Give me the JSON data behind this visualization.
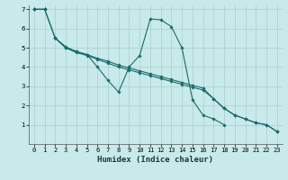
{
  "background_color": "#c8eaea",
  "grid_color": "#aacccc",
  "line_color": "#1a6b6b",
  "series": [
    {
      "x": [
        0,
        1
      ],
      "y": [
        7.0,
        7.0
      ]
    },
    {
      "x": [
        2,
        3,
        4,
        5,
        6,
        7,
        8,
        9,
        10,
        11,
        12,
        13,
        14,
        15,
        16,
        17,
        18
      ],
      "y": [
        5.5,
        5.0,
        4.8,
        4.65,
        4.0,
        3.3,
        2.7,
        4.0,
        4.6,
        6.5,
        6.45,
        6.1,
        5.0,
        2.3,
        1.5,
        1.3,
        1.0
      ]
    },
    {
      "x": [
        0,
        1,
        2,
        3,
        4,
        5,
        6,
        7,
        8,
        9,
        10,
        11,
        12,
        13,
        14,
        15,
        16,
        17,
        18,
        19,
        20,
        21,
        22,
        23
      ],
      "y": [
        7.0,
        7.0,
        5.5,
        5.0,
        4.75,
        4.6,
        4.4,
        4.2,
        4.0,
        3.85,
        3.7,
        3.55,
        3.4,
        3.25,
        3.1,
        2.95,
        2.8,
        2.35,
        1.85,
        1.5,
        1.3,
        1.1,
        1.0,
        0.65
      ]
    },
    {
      "x": [
        0,
        1,
        2,
        3,
        4,
        5,
        6,
        7,
        8,
        9,
        10,
        11,
        12,
        13,
        14,
        15,
        16,
        17,
        18,
        19,
        20,
        21,
        22,
        23
      ],
      "y": [
        7.0,
        7.0,
        5.5,
        5.05,
        4.8,
        4.65,
        4.45,
        4.3,
        4.1,
        3.95,
        3.8,
        3.65,
        3.5,
        3.35,
        3.2,
        3.05,
        2.9,
        2.35,
        1.85,
        1.5,
        1.3,
        1.1,
        1.0,
        0.65
      ]
    }
  ],
  "xlabel": "Humidex (Indice chaleur)",
  "xlim": [
    -0.5,
    23.5
  ],
  "ylim": [
    0,
    7.2
  ],
  "yticks": [
    1,
    2,
    3,
    4,
    5,
    6,
    7
  ],
  "xticks": [
    0,
    1,
    2,
    3,
    4,
    5,
    6,
    7,
    8,
    9,
    10,
    11,
    12,
    13,
    14,
    15,
    16,
    17,
    18,
    19,
    20,
    21,
    22,
    23
  ],
  "marker": "D",
  "marker_size": 1.8,
  "linewidth": 0.8,
  "xlabel_fontsize": 6.5,
  "tick_fontsize": 5.0
}
